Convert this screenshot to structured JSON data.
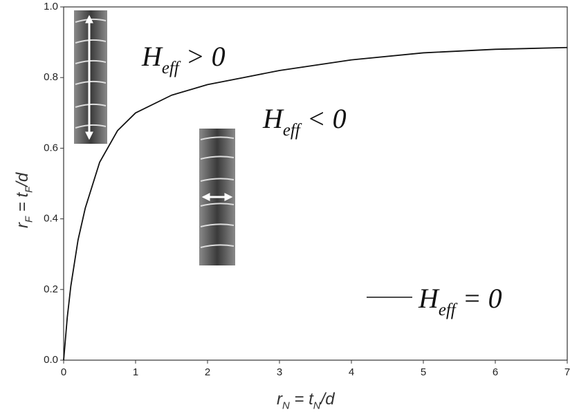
{
  "chart_data": {
    "type": "line",
    "x_label": [
      "r",
      "N",
      " = t",
      "N",
      "/d"
    ],
    "y_label": [
      "r",
      "F",
      " = t",
      "F",
      "/d"
    ],
    "x": [
      0,
      0.05,
      0.1,
      0.2,
      0.3,
      0.5,
      0.75,
      1,
      1.5,
      2,
      2.5,
      3,
      4,
      5,
      6,
      7
    ],
    "series": [
      {
        "name": [
          "H",
          "eff",
          " = 0"
        ],
        "color": "#111111",
        "values": [
          0,
          0.12,
          0.21,
          0.34,
          0.43,
          0.56,
          0.65,
          0.7,
          0.75,
          0.78,
          0.8,
          0.82,
          0.85,
          0.87,
          0.88,
          0.885
        ]
      }
    ],
    "xlim": [
      0,
      7
    ],
    "ylim": [
      0,
      1
    ],
    "xticks": [
      0,
      1,
      2,
      3,
      4,
      5,
      6,
      7
    ],
    "yticks": [
      {
        "value": 0,
        "label": "0.0"
      },
      0.2,
      0.4,
      0.6,
      0.8,
      {
        "value": 1,
        "label": "1.0"
      }
    ],
    "annotations": [
      {
        "text": [
          "H",
          "eff",
          " > 0"
        ]
      },
      {
        "text": [
          "H",
          "eff",
          " < 0"
        ]
      }
    ]
  }
}
